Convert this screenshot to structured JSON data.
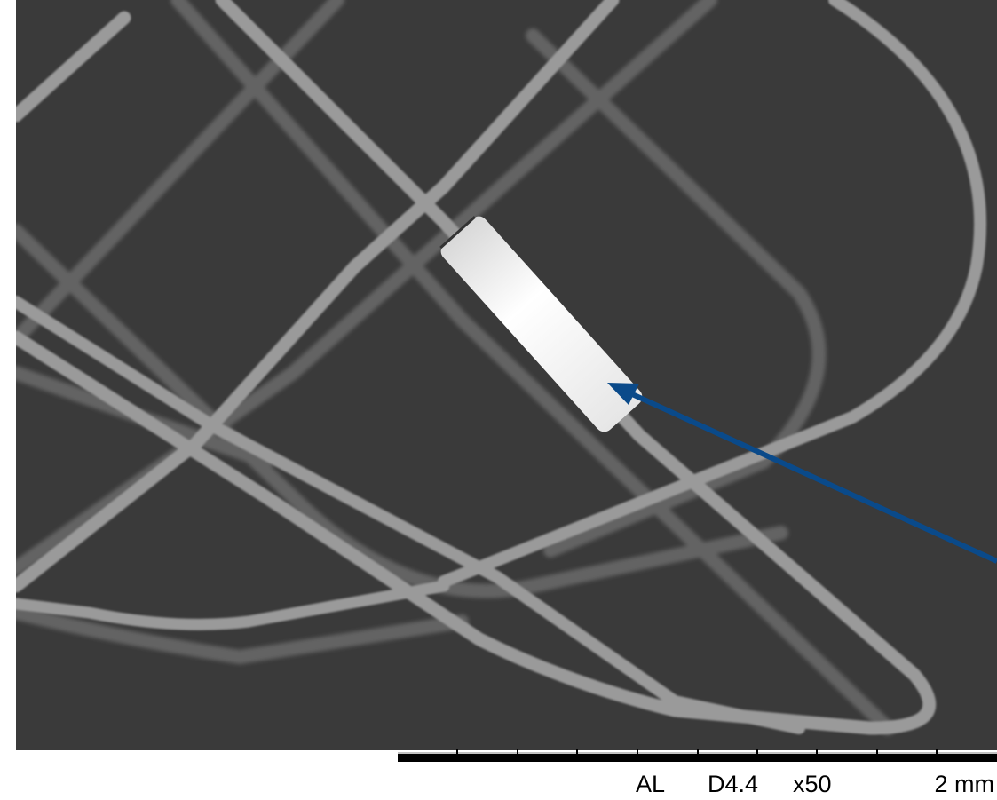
{
  "image_info": {
    "mode": "AL",
    "working_distance": "D4.4",
    "magnification": "x50",
    "scale": "2 mm"
  }
}
